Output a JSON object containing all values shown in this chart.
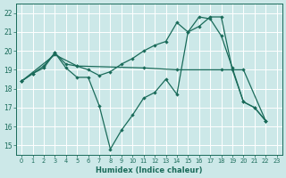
{
  "bg_color": "#cce8e8",
  "grid_color": "#b0d4d4",
  "line_color": "#1a6b5a",
  "xlabel": "Humidex (Indice chaleur)",
  "xlim": [
    -0.5,
    23.5
  ],
  "ylim": [
    14.5,
    22.5
  ],
  "xticks": [
    0,
    1,
    2,
    3,
    4,
    5,
    6,
    7,
    8,
    9,
    10,
    11,
    12,
    13,
    14,
    15,
    16,
    17,
    18,
    19,
    20,
    21,
    22,
    23
  ],
  "yticks": [
    15,
    16,
    17,
    18,
    19,
    20,
    21,
    22
  ],
  "curve1_x": [
    0,
    1,
    2,
    3,
    4,
    5,
    6,
    7,
    8,
    9,
    10,
    11,
    12,
    13,
    14,
    15,
    16,
    17,
    18,
    19,
    20,
    21,
    22
  ],
  "curve1_y": [
    18.4,
    18.8,
    19.2,
    19.9,
    19.1,
    18.6,
    18.6,
    17.1,
    14.8,
    15.8,
    16.6,
    17.5,
    17.8,
    18.5,
    17.7,
    21.0,
    21.3,
    21.8,
    21.8,
    19.0,
    17.3,
    17.0,
    16.3
  ],
  "curve2_x": [
    0,
    1,
    2,
    3,
    4,
    5,
    6,
    7,
    8,
    9,
    10,
    11,
    12,
    13,
    14,
    15,
    16,
    17,
    18,
    19,
    20,
    21,
    22
  ],
  "curve2_y": [
    18.4,
    18.8,
    19.1,
    19.9,
    19.3,
    19.2,
    19.0,
    18.7,
    18.9,
    19.3,
    19.6,
    20.0,
    20.3,
    20.5,
    21.5,
    21.0,
    21.8,
    21.7,
    20.8,
    19.1,
    17.3,
    17.0,
    16.3
  ],
  "curve3_x": [
    0,
    3,
    5,
    11,
    14,
    18,
    20,
    22
  ],
  "curve3_y": [
    18.4,
    19.8,
    19.2,
    19.1,
    19.0,
    19.0,
    19.0,
    16.3
  ]
}
